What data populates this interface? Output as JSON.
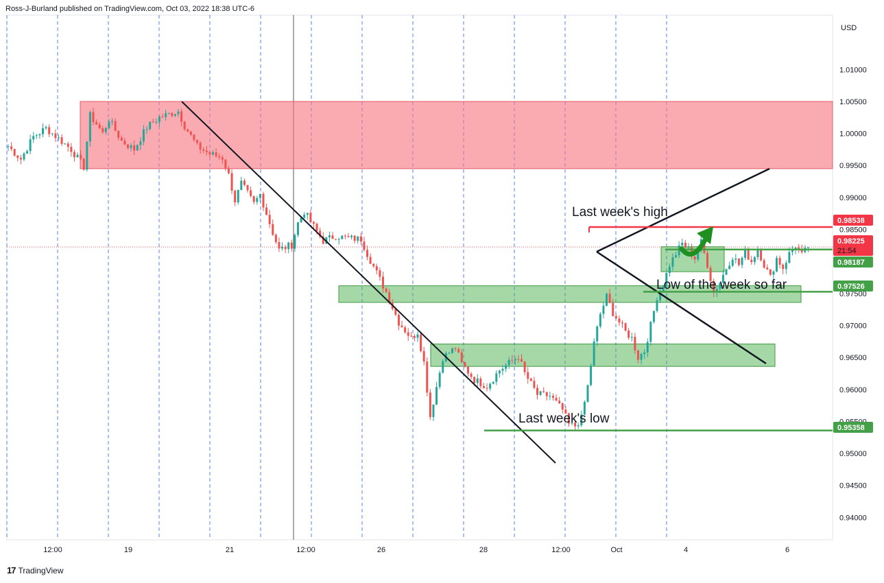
{
  "header": {
    "publisher": "Ross-J-Burland published on TradingView.com, Oct 03, 2022 18:38 UTC-6"
  },
  "footer": {
    "brand": "TradingView",
    "logo_text": "17"
  },
  "colors": {
    "resistance_zone": "#f7737d",
    "demand_zone": "#4caf50",
    "up_candle": "#26a69a",
    "down_candle": "#ef5350",
    "high_line": "#f23645",
    "low_line": "#43a047",
    "grid_dash": "#2962ff"
  },
  "chart_data": {
    "type": "candlestick",
    "currency": "USD",
    "y_ticks": [
      "1.01000",
      "1.00500",
      "1.00000",
      "0.99500",
      "0.99000",
      "0.98500",
      "0.98000",
      "0.97500",
      "0.97000",
      "0.96500",
      "0.96000",
      "0.95500",
      "0.95000",
      "0.94500",
      "0.94000"
    ],
    "ylim": [
      0.9365,
      1.0185
    ],
    "x_ticks": [
      "12:00",
      "19",
      "21",
      "12:00",
      "26",
      "28",
      "12:00",
      "Oct",
      "4",
      "6"
    ],
    "price_labels": [
      {
        "text": "0.98538",
        "value": 0.98538,
        "kind": "high"
      },
      {
        "text": "0.98225",
        "value": 0.98225,
        "kind": "current",
        "countdown": "21:54"
      },
      {
        "text": "0.98187",
        "value": 0.98187,
        "kind": "support"
      },
      {
        "text": "0.97526",
        "value": 0.97526,
        "kind": "low"
      },
      {
        "text": "0.95358",
        "value": 0.95358,
        "kind": "support"
      }
    ],
    "annotations": [
      "Last week's high",
      "Low of the week so far",
      "Last week's low"
    ],
    "zones": [
      {
        "kind": "resistance",
        "y_top": 1.005,
        "y_bottom": 0.9945
      },
      {
        "kind": "demand",
        "y_top": 0.9762,
        "y_bottom": 0.9736
      },
      {
        "kind": "demand",
        "y_top": 0.9671,
        "y_bottom": 0.9636
      },
      {
        "kind": "demand",
        "y_top": 0.9823,
        "y_bottom": 0.9784
      }
    ],
    "price_path": [
      [
        0,
        0.998
      ],
      [
        2,
        0.996
      ],
      [
        4,
        0.9995
      ],
      [
        6,
        1.0008
      ],
      [
        8,
        0.9992
      ],
      [
        10,
        0.9975
      ],
      [
        12,
        0.9948
      ],
      [
        13,
        1.0028
      ],
      [
        14,
        1.0015
      ],
      [
        15,
        1.0
      ],
      [
        16,
        1.0022
      ],
      [
        18,
        0.9988
      ],
      [
        20,
        0.9975
      ],
      [
        22,
        1.001
      ],
      [
        24,
        1.0025
      ],
      [
        26,
        1.0032
      ],
      [
        27,
        1.0035
      ],
      [
        28,
        1.0012
      ],
      [
        30,
        0.998
      ],
      [
        32,
        0.9968
      ],
      [
        34,
        0.9962
      ],
      [
        35,
        0.9935
      ],
      [
        36,
        0.9895
      ],
      [
        37,
        0.9922
      ],
      [
        39,
        0.989
      ],
      [
        40,
        0.9905
      ],
      [
        42,
        0.9845
      ],
      [
        43,
        0.9818
      ],
      [
        45,
        0.9826
      ],
      [
        46,
        0.986
      ],
      [
        47,
        0.9878
      ],
      [
        48,
        0.9862
      ],
      [
        50,
        0.9832
      ],
      [
        52,
        0.984
      ],
      [
        54,
        0.9836
      ],
      [
        56,
        0.9835
      ],
      [
        57,
        0.9812
      ],
      [
        59,
        0.9772
      ],
      [
        60,
        0.9752
      ],
      [
        62,
        0.9705
      ],
      [
        64,
        0.968
      ],
      [
        65,
        0.969
      ],
      [
        66,
        0.9642
      ],
      [
        67,
        0.9558
      ],
      [
        69,
        0.965
      ],
      [
        71,
        0.9665
      ],
      [
        72,
        0.964
      ],
      [
        74,
        0.9615
      ],
      [
        76,
        0.9605
      ],
      [
        78,
        0.963
      ],
      [
        80,
        0.9645
      ],
      [
        81,
        0.9652
      ],
      [
        82,
        0.9625
      ],
      [
        84,
        0.9592
      ],
      [
        86,
        0.959
      ],
      [
        88,
        0.9568
      ],
      [
        89,
        0.9545
      ],
      [
        90,
        0.9543
      ],
      [
        91,
        0.9555
      ],
      [
        92,
        0.9605
      ],
      [
        93,
        0.9672
      ],
      [
        94,
        0.9718
      ],
      [
        95,
        0.9745
      ],
      [
        96,
        0.972
      ],
      [
        97,
        0.9705
      ],
      [
        98,
        0.969
      ],
      [
        99,
        0.968
      ],
      [
        100,
        0.965
      ],
      [
        101,
        0.966
      ],
      [
        102,
        0.97
      ],
      [
        103,
        0.9745
      ],
      [
        104,
        0.9765
      ],
      [
        105,
        0.9795
      ],
      [
        106,
        0.9812
      ],
      [
        107,
        0.9828
      ],
      [
        108,
        0.9818
      ],
      [
        109,
        0.9805
      ],
      [
        110,
        0.983
      ],
      [
        111,
        0.9795
      ],
      [
        112,
        0.9752
      ],
      [
        113,
        0.9768
      ],
      [
        114,
        0.979
      ],
      [
        115,
        0.9808
      ],
      [
        116,
        0.9795
      ],
      [
        117,
        0.9815
      ],
      [
        118,
        0.98
      ],
      [
        119,
        0.982
      ],
      [
        120,
        0.9795
      ],
      [
        121,
        0.9775
      ],
      [
        122,
        0.9805
      ],
      [
        123,
        0.979
      ],
      [
        124,
        0.9812
      ],
      [
        125,
        0.9825
      ],
      [
        126,
        0.981
      ],
      [
        127,
        0.9822
      ]
    ]
  }
}
